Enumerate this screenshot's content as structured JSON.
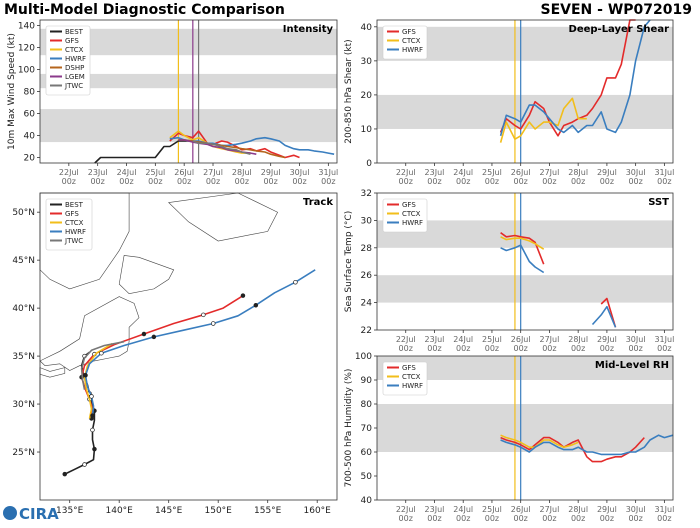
{
  "header": {
    "left_title": "Multi-Model Diagnostic Comparison",
    "right_title": "SEVEN - WP072019"
  },
  "logo": {
    "text": "CIRA"
  },
  "colors": {
    "BEST": "#222222",
    "GFS": "#e32b2b",
    "CTCX": "#f2be1a",
    "HWRF": "#3a7ebf",
    "DSHP": "#b5651d",
    "LGEM": "#8b3a8b",
    "JTWC": "#777777",
    "band": "#d9d9d9",
    "vline_ctcx": "#f2be1a",
    "vline_best": "#4444aa",
    "vline_dark": "#7a3b3b"
  },
  "time_ticks": [
    "22Jul\n00z",
    "23Jul\n00z",
    "24Jul\n00z",
    "25Jul\n00z",
    "26Jul\n00z",
    "27Jul\n00z",
    "28Jul\n00z",
    "29Jul\n00z",
    "30Jul\n00z",
    "31Jul\n00z"
  ],
  "chart_data": [
    {
      "id": "intensity",
      "type": "line",
      "title": "Intensity",
      "ylabel": "10m Max Wind Speed (kt)",
      "xlim": [
        21.0,
        31.3
      ],
      "ylim": [
        15,
        145
      ],
      "yticks": [
        20,
        40,
        60,
        80,
        100,
        120,
        140
      ],
      "bands": [
        [
          34,
          64
        ],
        [
          83,
          96
        ],
        [
          113,
          137
        ]
      ],
      "vlines": [
        {
          "x": 25.8,
          "color": "CTCX"
        },
        {
          "x": 26.3,
          "color": "LGEM"
        },
        {
          "x": 26.5,
          "color": "JTWC"
        }
      ],
      "legend": [
        "BEST",
        "GFS",
        "CTCX",
        "HWRF",
        "DSHP",
        "LGEM",
        "JTWC"
      ],
      "series": [
        {
          "name": "BEST",
          "x": [
            22.9,
            23.1,
            23.5,
            24.0,
            24.5,
            25.0,
            25.3,
            25.5,
            25.8,
            26.0,
            26.3
          ],
          "y": [
            15,
            20,
            20,
            20,
            20,
            20,
            30,
            30,
            35,
            35,
            35
          ]
        },
        {
          "name": "GFS",
          "x": [
            25.5,
            25.8,
            26.0,
            26.3,
            26.5,
            26.8,
            27.0,
            27.3,
            27.5,
            27.8,
            28.0,
            28.3,
            28.5,
            28.8,
            29.0,
            29.3,
            29.5,
            29.8,
            30.0
          ],
          "y": [
            35,
            42,
            40,
            38,
            44,
            33,
            32,
            35,
            34,
            30,
            27,
            28,
            26,
            28,
            25,
            22,
            20,
            22,
            20
          ]
        },
        {
          "name": "CTCX",
          "x": [
            25.5,
            25.8,
            26.0,
            26.3,
            26.5,
            26.8,
            27.0,
            27.3,
            27.5,
            27.8,
            28.0,
            28.3
          ],
          "y": [
            38,
            44,
            40,
            36,
            38,
            33,
            30,
            28,
            27,
            25,
            24,
            24
          ]
        },
        {
          "name": "HWRF",
          "x": [
            25.5,
            25.8,
            26.0,
            26.3,
            26.5,
            26.8,
            27.0,
            27.3,
            27.5,
            27.8,
            28.0,
            28.3,
            28.5,
            28.8,
            29.0,
            29.3,
            29.5,
            29.8,
            30.0,
            30.3,
            30.5,
            30.8,
            31.0,
            31.2
          ],
          "y": [
            37,
            38,
            36,
            35,
            35,
            33,
            33,
            31,
            31,
            32,
            33,
            35,
            37,
            38,
            37,
            35,
            31,
            28,
            27,
            27,
            26,
            25,
            24,
            23
          ]
        },
        {
          "name": "DSHP",
          "x": [
            25.8,
            26.0,
            26.3,
            26.5,
            26.8,
            27.0,
            27.3,
            27.5,
            27.8,
            28.0,
            28.3,
            28.5,
            28.8,
            29.0,
            29.3,
            29.5
          ],
          "y": [
            36,
            36,
            35,
            34,
            33,
            32,
            31,
            30,
            29,
            28,
            27,
            26,
            25,
            23,
            21,
            20
          ]
        },
        {
          "name": "LGEM",
          "x": [
            25.8,
            26.0,
            26.3,
            26.5,
            26.8,
            27.0,
            27.3,
            27.5,
            27.8,
            28.0,
            28.3,
            28.5
          ],
          "y": [
            36,
            36,
            34,
            33,
            32,
            30,
            29,
            27,
            26,
            25,
            24,
            23
          ]
        },
        {
          "name": "JTWC",
          "x": [
            26.3,
            26.5,
            26.8,
            27.0,
            27.3,
            27.5,
            27.8,
            28.0,
            28.3
          ],
          "y": [
            35,
            33,
            33,
            32,
            30,
            28,
            27,
            25,
            23
          ]
        }
      ]
    },
    {
      "id": "shear",
      "type": "line",
      "title": "Deep-Layer Shear",
      "ylabel": "200-850 hPa Shear (kt)",
      "xlim": [
        21.0,
        31.3
      ],
      "ylim": [
        0,
        42
      ],
      "yticks": [
        0,
        10,
        20,
        30,
        40
      ],
      "bands": [
        [
          10,
          20
        ],
        [
          30,
          40
        ]
      ],
      "vlines": [
        {
          "x": 25.8,
          "color": "CTCX"
        },
        {
          "x": 26.0,
          "color": "HWRF"
        }
      ],
      "legend": [
        "GFS",
        "CTCX",
        "HWRF"
      ],
      "series": [
        {
          "name": "GFS",
          "x": [
            25.3,
            25.5,
            25.8,
            26.0,
            26.3,
            26.5,
            26.8,
            27.0,
            27.3,
            27.5,
            27.8,
            28.0,
            28.3,
            28.5,
            28.8,
            29.0,
            29.3,
            29.5,
            29.8,
            30.0
          ],
          "y": [
            9,
            13,
            11,
            10,
            14,
            18,
            16,
            12,
            8,
            11,
            12,
            13,
            14,
            16,
            20,
            25,
            25,
            29,
            43,
            46
          ]
        },
        {
          "name": "CTCX",
          "x": [
            25.3,
            25.5,
            25.8,
            26.0,
            26.3,
            26.5,
            26.8,
            27.0,
            27.3,
            27.5,
            27.8,
            28.0,
            28.3
          ],
          "y": [
            6,
            12,
            7,
            8,
            12,
            10,
            12,
            12,
            11,
            16,
            19,
            13,
            13
          ]
        },
        {
          "name": "HWRF",
          "x": [
            25.3,
            25.5,
            25.8,
            26.0,
            26.3,
            26.5,
            26.8,
            27.0,
            27.3,
            27.5,
            27.8,
            28.0,
            28.3,
            28.5,
            28.8,
            29.0,
            29.3,
            29.5,
            29.8,
            30.0,
            30.3,
            30.5
          ],
          "y": [
            8,
            14,
            13,
            12,
            17,
            17,
            15,
            13,
            10,
            9,
            11,
            9,
            11,
            11,
            15,
            10,
            9,
            12,
            20,
            30,
            40,
            42
          ]
        }
      ]
    },
    {
      "id": "sst",
      "type": "line",
      "title": "SST",
      "ylabel": "Sea Surface Temp (°C)",
      "xlim": [
        21.0,
        31.3
      ],
      "ylim": [
        22,
        32
      ],
      "yticks": [
        22,
        24,
        26,
        28,
        30,
        32
      ],
      "bands": [
        [
          24,
          26
        ],
        [
          28,
          30
        ]
      ],
      "vlines": [
        {
          "x": 25.8,
          "color": "CTCX"
        },
        {
          "x": 26.0,
          "color": "HWRF"
        }
      ],
      "legend": [
        "GFS",
        "CTCX",
        "HWRF"
      ],
      "series": [
        {
          "name": "GFS",
          "x": [
            25.3,
            25.5,
            25.8,
            26.0,
            26.3,
            26.5,
            26.8,
            null,
            28.8,
            29.0,
            29.3
          ],
          "y": [
            29.1,
            28.8,
            28.9,
            28.8,
            28.7,
            28.4,
            26.8,
            null,
            23.9,
            24.3,
            22.2
          ]
        },
        {
          "name": "CTCX",
          "x": [
            25.3,
            25.5,
            25.8,
            26.0,
            26.3,
            26.5,
            26.8
          ],
          "y": [
            28.8,
            28.6,
            28.7,
            28.7,
            28.5,
            28.3,
            27.9
          ]
        },
        {
          "name": "HWRF",
          "x": [
            25.3,
            25.5,
            25.8,
            26.0,
            26.3,
            26.5,
            26.8,
            null,
            28.5,
            28.8,
            29.0,
            29.3
          ],
          "y": [
            28.0,
            27.8,
            28.0,
            28.2,
            27.0,
            26.6,
            26.2,
            null,
            22.4,
            23.1,
            23.7,
            22.2
          ]
        }
      ]
    },
    {
      "id": "rh",
      "type": "line",
      "title": "Mid-Level RH",
      "ylabel": "700-500 hPa Humidity (%)",
      "xlim": [
        21.0,
        31.3
      ],
      "ylim": [
        40,
        100
      ],
      "yticks": [
        40,
        50,
        60,
        70,
        80,
        90,
        100
      ],
      "bands": [
        [
          60,
          80
        ],
        [
          90,
          100
        ]
      ],
      "vlines": [
        {
          "x": 25.8,
          "color": "CTCX"
        },
        {
          "x": 26.0,
          "color": "HWRF"
        }
      ],
      "legend": [
        "GFS",
        "CTCX",
        "HWRF"
      ],
      "series": [
        {
          "name": "GFS",
          "x": [
            25.3,
            25.5,
            25.8,
            26.0,
            26.3,
            26.5,
            26.8,
            27.0,
            27.3,
            27.5,
            27.8,
            28.0,
            28.3,
            28.5,
            28.8,
            29.0,
            29.3,
            29.5,
            29.8,
            30.0,
            30.3
          ],
          "y": [
            66,
            65,
            64,
            63,
            61,
            63,
            66,
            66,
            64,
            62,
            64,
            65,
            58,
            56,
            56,
            57,
            58,
            58,
            60,
            62,
            66
          ]
        },
        {
          "name": "CTCX",
          "x": [
            25.3,
            25.5,
            25.8,
            26.0,
            26.3,
            26.5,
            26.8,
            27.0,
            27.3,
            27.5,
            27.8,
            28.0
          ],
          "y": [
            67,
            66,
            65,
            64,
            62,
            62,
            65,
            65,
            63,
            62,
            63,
            64
          ]
        },
        {
          "name": "HWRF",
          "x": [
            25.3,
            25.5,
            25.8,
            26.0,
            26.3,
            26.5,
            26.8,
            27.0,
            27.3,
            27.5,
            27.8,
            28.0,
            28.3,
            28.5,
            28.8,
            29.0,
            29.3,
            29.5,
            29.8,
            30.0,
            30.3,
            30.5,
            30.8,
            31.0,
            31.3
          ],
          "y": [
            65,
            64,
            63,
            62,
            60,
            62,
            64,
            64,
            62,
            61,
            61,
            62,
            60,
            60,
            59,
            59,
            59,
            59,
            60,
            60,
            62,
            65,
            67,
            66,
            67
          ]
        }
      ]
    },
    {
      "id": "track",
      "type": "line",
      "title": "Track",
      "xlim": [
        132,
        162
      ],
      "ylim": [
        20,
        52
      ],
      "xticks": [
        135,
        140,
        145,
        150,
        155,
        160
      ],
      "xtick_labels": [
        "135°E",
        "140°E",
        "145°E",
        "150°E",
        "155°E",
        "160°E"
      ],
      "yticks": [
        25,
        30,
        35,
        40,
        45,
        50
      ],
      "ytick_labels": [
        "25°N",
        "30°N",
        "35°N",
        "40°N",
        "45°N",
        "50°N"
      ],
      "legend": [
        "BEST",
        "GFS",
        "CTCX",
        "HWRF",
        "JTWC"
      ],
      "series": [
        {
          "name": "BEST",
          "lon": [
            134.5,
            135.5,
            136.5,
            137.4,
            137.5,
            137.3,
            137.3,
            137.5,
            137.5,
            137.2,
            137.0,
            136.8,
            136.4,
            136.2,
            136.5,
            137.0
          ],
          "lat": [
            22.7,
            23.2,
            23.7,
            24.2,
            25.3,
            26.3,
            27.3,
            28.3,
            29.3,
            30.2,
            31.1,
            32.0,
            33.0,
            34.0,
            35.0,
            35.4
          ]
        },
        {
          "name": "GFS",
          "lon": [
            137.2,
            137.3,
            137.0,
            136.6,
            136.2,
            136.5,
            137.5,
            139.5,
            142.5,
            145.5,
            148.5,
            150.5,
            152.5
          ],
          "lat": [
            28.5,
            29.5,
            30.5,
            31.5,
            32.8,
            34.0,
            35.2,
            36.2,
            37.3,
            38.4,
            39.3,
            40.0,
            41.3
          ]
        },
        {
          "name": "CTCX",
          "lon": [
            137.0,
            137.2,
            137.0,
            136.7,
            136.5,
            136.8,
            137.7,
            139.3
          ],
          "lat": [
            28.5,
            29.5,
            30.5,
            31.5,
            32.8,
            34.0,
            35.3,
            36.3
          ]
        },
        {
          "name": "HWRF",
          "lon": [
            137.3,
            137.4,
            137.2,
            136.8,
            136.6,
            137.0,
            138.2,
            140.5,
            143.5,
            146.5,
            149.5,
            152.0,
            153.8,
            155.7,
            157.8,
            159.8
          ],
          "lat": [
            28.8,
            29.8,
            30.8,
            31.8,
            33.0,
            34.2,
            35.3,
            36.1,
            37.0,
            37.7,
            38.4,
            39.2,
            40.3,
            41.6,
            42.7,
            44.0
          ]
        },
        {
          "name": "JTWC",
          "lon": [
            136.5,
            136.3,
            136.2,
            136.5,
            137.2,
            138.5,
            140.5
          ],
          "lat": [
            31.5,
            32.5,
            33.7,
            34.8,
            35.6,
            36.1,
            36.5
          ]
        }
      ]
    }
  ]
}
